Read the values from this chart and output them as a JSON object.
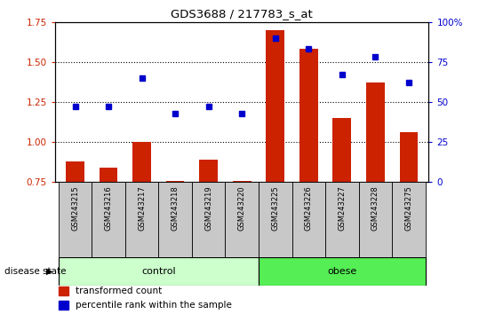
{
  "title": "GDS3688 / 217783_s_at",
  "samples": [
    "GSM243215",
    "GSM243216",
    "GSM243217",
    "GSM243218",
    "GSM243219",
    "GSM243220",
    "GSM243225",
    "GSM243226",
    "GSM243227",
    "GSM243228",
    "GSM243275"
  ],
  "groups": [
    "control",
    "control",
    "control",
    "control",
    "control",
    "control",
    "obese",
    "obese",
    "obese",
    "obese",
    "obese"
  ],
  "transformed_count": [
    0.88,
    0.84,
    1.0,
    0.76,
    0.89,
    0.76,
    1.7,
    1.58,
    1.15,
    1.37,
    1.06
  ],
  "percentile_rank": [
    47,
    47,
    65,
    43,
    47,
    43,
    90,
    83,
    67,
    78,
    62
  ],
  "ylim_left": [
    0.75,
    1.75
  ],
  "ylim_right": [
    0,
    100
  ],
  "yticks_left": [
    0.75,
    1.0,
    1.25,
    1.5,
    1.75
  ],
  "yticks_right": [
    0,
    25,
    50,
    75,
    100
  ],
  "bar_color": "#cc2200",
  "dot_color": "#0000cc",
  "control_color": "#ccffcc",
  "obese_color": "#55ee55",
  "tick_label_color_left": "#cc2200",
  "tick_label_color_right": "#0000cc",
  "legend_items": [
    "transformed count",
    "percentile rank within the sample"
  ],
  "n_control": 6,
  "n_obese": 5
}
